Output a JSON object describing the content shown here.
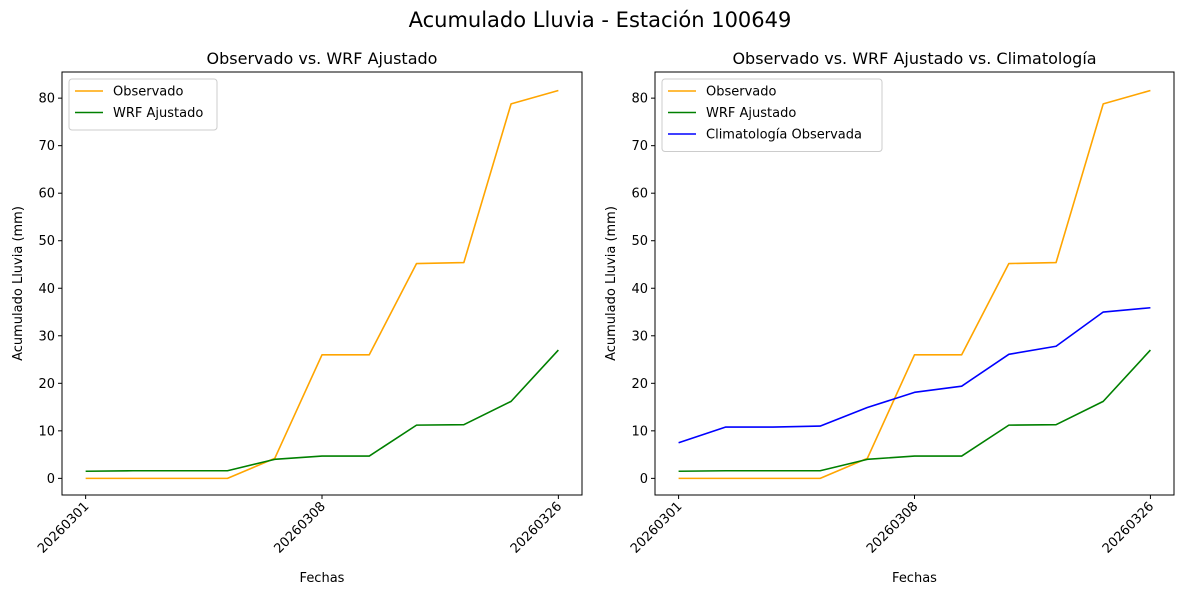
{
  "figure_title": "Acumulado Lluvia - Estación 100649",
  "colors": {
    "observado": "#ffa500",
    "wrf": "#008000",
    "clima": "#0000ff"
  },
  "chart_data": [
    {
      "type": "line",
      "title": "Observado vs. WRF Ajustado",
      "xlabel": "Fechas",
      "ylabel": "Acumulado Lluvia (mm)",
      "x": [
        0,
        1,
        2,
        3,
        4,
        5,
        6,
        7,
        8,
        9,
        10
      ],
      "xticks": [
        {
          "pos": 0,
          "label": "20260301"
        },
        {
          "pos": 5,
          "label": "20260308"
        },
        {
          "pos": 10,
          "label": "20260326"
        }
      ],
      "xlim": [
        -0.5,
        10.5
      ],
      "ylim": [
        -3.5,
        85.5
      ],
      "yticks": [
        0,
        10,
        20,
        30,
        40,
        50,
        60,
        70,
        80
      ],
      "legend": "upper-left",
      "series": [
        {
          "name": "Observado",
          "color_key": "observado",
          "values": [
            0,
            0,
            0,
            0,
            4.2,
            26.0,
            26.0,
            45.2,
            45.4,
            78.8,
            81.6
          ]
        },
        {
          "name": "WRF Ajustado",
          "color_key": "wrf",
          "values": [
            1.5,
            1.6,
            1.6,
            1.6,
            4.0,
            4.7,
            4.7,
            11.2,
            11.3,
            16.2,
            27.0
          ]
        }
      ]
    },
    {
      "type": "line",
      "title": "Observado vs. WRF Ajustado vs. Climatología",
      "xlabel": "Fechas",
      "ylabel": "Acumulado Lluvia (mm)",
      "x": [
        0,
        1,
        2,
        3,
        4,
        5,
        6,
        7,
        8,
        9,
        10
      ],
      "xticks": [
        {
          "pos": 0,
          "label": "20260301"
        },
        {
          "pos": 5,
          "label": "20260308"
        },
        {
          "pos": 10,
          "label": "20260326"
        }
      ],
      "xlim": [
        -0.5,
        10.5
      ],
      "ylim": [
        -3.5,
        85.5
      ],
      "yticks": [
        0,
        10,
        20,
        30,
        40,
        50,
        60,
        70,
        80
      ],
      "legend": "upper-left",
      "series": [
        {
          "name": "Observado",
          "color_key": "observado",
          "values": [
            0,
            0,
            0,
            0,
            4.2,
            26.0,
            26.0,
            45.2,
            45.4,
            78.8,
            81.6
          ]
        },
        {
          "name": "WRF Ajustado",
          "color_key": "wrf",
          "values": [
            1.5,
            1.6,
            1.6,
            1.6,
            4.0,
            4.7,
            4.7,
            11.2,
            11.3,
            16.2,
            27.0
          ]
        },
        {
          "name": "Climatología Observada",
          "color_key": "clima",
          "values": [
            7.5,
            10.8,
            10.8,
            11.0,
            14.9,
            18.1,
            19.4,
            26.1,
            27.8,
            35.0,
            35.9
          ]
        }
      ]
    }
  ]
}
